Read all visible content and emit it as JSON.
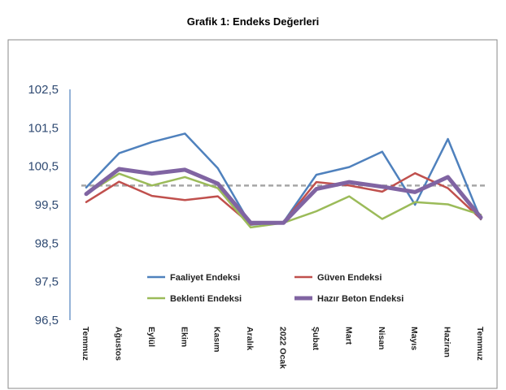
{
  "chart_data": {
    "type": "line",
    "title": "Grafik 1: Endeks Değerleri",
    "xlabel": "",
    "ylabel": "",
    "categories": [
      "Temmuz",
      "Ağustos",
      "Eylül",
      "Ekim",
      "Kasım",
      "Aralık",
      "2022 Ocak",
      "Şubat",
      "Mart",
      "Nisan",
      "Mayıs",
      "Haziran",
      "Temmuz"
    ],
    "yticks": [
      "102,5",
      "101,5",
      "100,5",
      "99,5",
      "98,5",
      "97,5",
      "96,5"
    ],
    "ylim": [
      96.5,
      102.5
    ],
    "grid": false,
    "legend": "bottom-inside",
    "reference_line": {
      "value": 100,
      "style": "dashed",
      "color": "#a6a6a6"
    },
    "series": [
      {
        "name": "Faaliyet Endeksi",
        "color": "#4f81bd",
        "values": [
          99.95,
          100.84,
          101.13,
          101.35,
          100.45,
          98.98,
          99.05,
          100.28,
          100.48,
          100.88,
          99.5,
          101.21,
          99.12
        ]
      },
      {
        "name": "Güven Endeksi",
        "color": "#c0504d",
        "values": [
          99.57,
          100.1,
          99.73,
          99.62,
          99.72,
          98.99,
          99.05,
          100.09,
          100.0,
          99.84,
          100.32,
          99.93,
          99.13
        ]
      },
      {
        "name": "Beklenti Endeksi",
        "color": "#9bbb59",
        "values": [
          99.78,
          100.31,
          100.0,
          100.22,
          99.93,
          98.91,
          99.03,
          99.33,
          99.72,
          99.13,
          99.57,
          99.51,
          99.24
        ]
      },
      {
        "name": "Hazır Beton Endeksi",
        "color": "#8064a2",
        "values": [
          99.78,
          100.43,
          100.31,
          100.41,
          100.05,
          99.03,
          99.03,
          99.91,
          100.09,
          99.97,
          99.83,
          100.22,
          99.17
        ]
      }
    ]
  }
}
